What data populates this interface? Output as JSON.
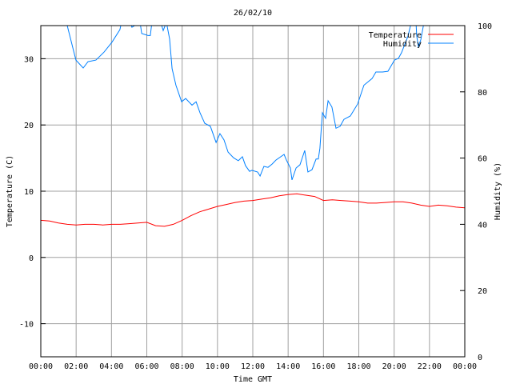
{
  "chart_data": {
    "type": "line",
    "title": "26/02/10",
    "xlabel": "Time GMT",
    "ylabel": "Temperature (C)",
    "y2label": "Humidity (%)",
    "xlim": [
      0,
      24
    ],
    "ylim": [
      -15,
      35
    ],
    "y2lim": [
      0,
      100
    ],
    "grid": true,
    "legend_position": "top-right",
    "x_ticks": [
      {
        "value": 0,
        "label": "00:00"
      },
      {
        "value": 2,
        "label": "02:00"
      },
      {
        "value": 4,
        "label": "04:00"
      },
      {
        "value": 6,
        "label": "06:00"
      },
      {
        "value": 8,
        "label": "08:00"
      },
      {
        "value": 10,
        "label": "10:00"
      },
      {
        "value": 12,
        "label": "12:00"
      },
      {
        "value": 14,
        "label": "14:00"
      },
      {
        "value": 16,
        "label": "16:00"
      },
      {
        "value": 18,
        "label": "18:00"
      },
      {
        "value": 20,
        "label": "20:00"
      },
      {
        "value": 22,
        "label": "22:00"
      },
      {
        "value": 24,
        "label": "00:00"
      }
    ],
    "y_ticks": [
      {
        "value": 30,
        "label": "30"
      },
      {
        "value": 20,
        "label": "20"
      },
      {
        "value": 10,
        "label": "10"
      },
      {
        "value": 0,
        "label": "0"
      },
      {
        "value": -10,
        "label": "-10"
      }
    ],
    "y2_ticks": [
      {
        "value": 100,
        "label": "100"
      },
      {
        "value": 80,
        "label": "80"
      },
      {
        "value": 60,
        "label": "60"
      },
      {
        "value": 40,
        "label": "40"
      },
      {
        "value": 20,
        "label": "20"
      },
      {
        "value": 0,
        "label": "0"
      }
    ],
    "series": [
      {
        "name": "Temperature",
        "axis": "y",
        "color": "#ff0000",
        "x": [
          0,
          0.5,
          1,
          1.5,
          2,
          2.5,
          3,
          3.5,
          4,
          4.5,
          5,
          5.5,
          6,
          6.5,
          7,
          7.5,
          8,
          8.5,
          9,
          9.5,
          10,
          10.5,
          11,
          11.5,
          12,
          12.5,
          13,
          13.5,
          14,
          14.5,
          15,
          15.5,
          16,
          16.5,
          17,
          17.5,
          18,
          18.5,
          19,
          19.5,
          20,
          20.5,
          21,
          21.5,
          22,
          22.5,
          23,
          23.5,
          24
        ],
        "y": [
          5.6,
          5.5,
          5.2,
          5.0,
          4.9,
          5.0,
          5.0,
          4.9,
          5.0,
          5.0,
          5.1,
          5.2,
          5.3,
          4.8,
          4.7,
          5.0,
          5.6,
          6.3,
          6.9,
          7.3,
          7.7,
          8.0,
          8.3,
          8.5,
          8.6,
          8.8,
          9.0,
          9.3,
          9.5,
          9.6,
          9.4,
          9.2,
          8.6,
          8.7,
          8.6,
          8.5,
          8.4,
          8.2,
          8.2,
          8.3,
          8.4,
          8.4,
          8.2,
          7.9,
          7.7,
          7.9,
          7.8,
          7.6,
          7.5
        ]
      },
      {
        "name": "Humidity",
        "axis": "y2",
        "color": "#0080ff",
        "x": [
          0,
          1.45,
          1.99,
          2.4,
          2.67,
          3.12,
          3.58,
          4.03,
          4.48,
          4.57,
          5.07,
          5.16,
          5.62,
          5.71,
          6.07,
          6.2,
          6.29,
          6.79,
          6.93,
          7.11,
          7.29,
          7.43,
          7.65,
          7.97,
          8.2,
          8.56,
          8.79,
          9.01,
          9.28,
          9.6,
          9.92,
          10.14,
          10.37,
          10.6,
          10.91,
          11.18,
          11.41,
          11.59,
          11.82,
          11.95,
          12.27,
          12.41,
          12.63,
          12.86,
          13.09,
          13.31,
          13.77,
          13.9,
          14.13,
          14.22,
          14.45,
          14.67,
          14.94,
          15.12,
          15.35,
          15.58,
          15.71,
          15.8,
          15.94,
          16.12,
          16.26,
          16.48,
          16.71,
          16.94,
          17.16,
          17.52,
          17.93,
          18.29,
          18.75,
          18.97,
          19.34,
          19.65,
          20.02,
          20.24,
          20.42,
          20.79,
          20.97,
          21.24,
          21.28,
          21.37,
          21.51,
          21.69,
          24
        ],
        "y": [
          102,
          101,
          89.6,
          87.2,
          89.1,
          89.6,
          92,
          95,
          98.8,
          101,
          101,
          99.5,
          101,
          97.6,
          97,
          97,
          101,
          101,
          98.5,
          101,
          96,
          87,
          82,
          77,
          78,
          76,
          77,
          73.7,
          70.5,
          69.6,
          64.7,
          67.4,
          65.5,
          61.8,
          60.1,
          59.2,
          60.4,
          57.7,
          56,
          56.3,
          55.8,
          54.6,
          57.5,
          57.2,
          58.2,
          59.4,
          61.1,
          59.4,
          57,
          53.4,
          57,
          58,
          62.3,
          55.8,
          56.5,
          59.7,
          59.7,
          63,
          73.7,
          72,
          77.3,
          75.4,
          69,
          69.6,
          71.7,
          72.7,
          76.3,
          82,
          84,
          86,
          86,
          86.2,
          89.6,
          90.1,
          91.8,
          96.9,
          101,
          101,
          96.9,
          93.7,
          95.7,
          101,
          102
        ]
      }
    ]
  }
}
